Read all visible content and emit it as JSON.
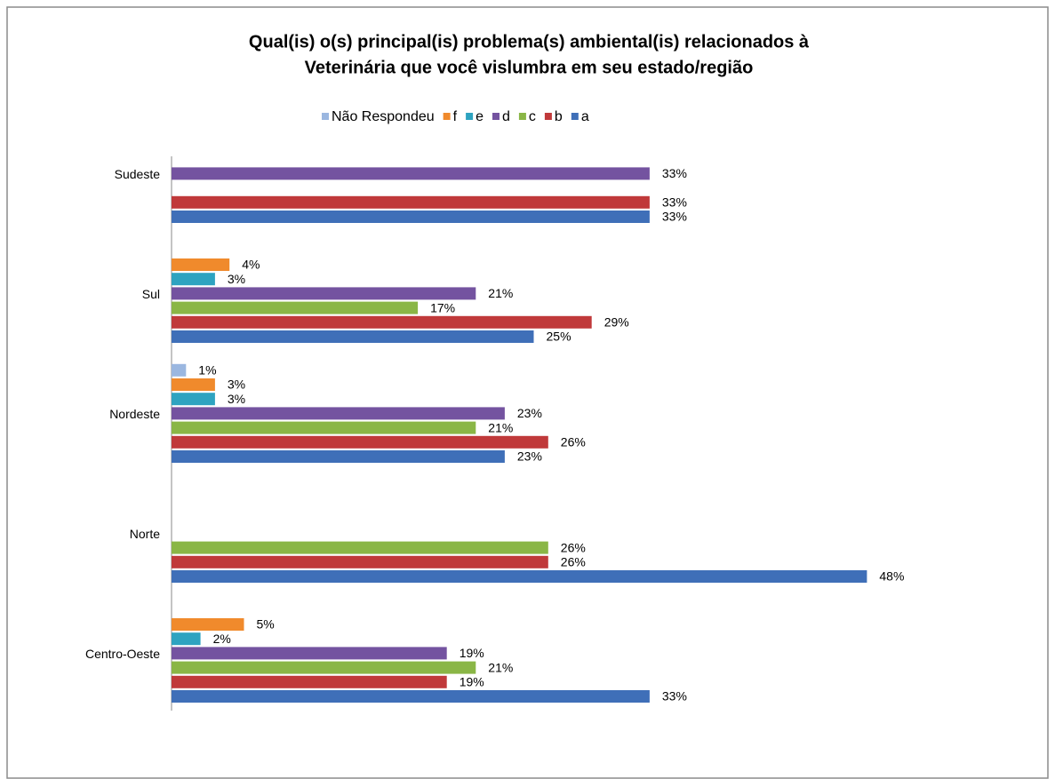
{
  "chart_data": {
    "type": "hbar",
    "title": [
      "Qual(is) o(s) principal(is)  problema(s) ambiental(is) relacionados à",
      "Veterinária que você vislumbra em seu estado/região"
    ],
    "categories": [
      "Sudeste",
      "Sul",
      "Nordeste",
      "Norte",
      "Centro-Oeste"
    ],
    "series": [
      {
        "name": "Não Respondeu",
        "color": "#9bb7e0",
        "values": [
          null,
          null,
          1,
          null,
          null
        ],
        "value_labels": [
          null,
          null,
          "1%",
          null,
          null
        ]
      },
      {
        "name": "f",
        "color": "#f08a2c",
        "values": [
          null,
          4,
          3,
          null,
          5
        ],
        "value_labels": [
          null,
          "4%",
          "3%",
          null,
          "5%"
        ]
      },
      {
        "name": "e",
        "color": "#2ea3c0",
        "values": [
          null,
          3,
          3,
          null,
          2
        ],
        "value_labels": [
          null,
          "3%",
          "3%",
          null,
          "2%"
        ]
      },
      {
        "name": "d",
        "color": "#7453a0",
        "values": [
          33,
          21,
          23,
          null,
          19
        ],
        "value_labels": [
          "33%",
          "21%",
          "23%",
          null,
          "19%"
        ]
      },
      {
        "name": "c",
        "color": "#8ab646",
        "values": [
          null,
          17,
          21,
          26,
          21
        ],
        "value_labels": [
          null,
          "17%",
          "21%",
          "26%",
          "21%"
        ]
      },
      {
        "name": "b",
        "color": "#c0393a",
        "values": [
          33,
          29,
          26,
          26,
          19
        ],
        "value_labels": [
          "33%",
          "29%",
          "26%",
          "26%",
          "19%"
        ]
      },
      {
        "name": "a",
        "color": "#3f6fb8",
        "values": [
          33,
          25,
          23,
          48,
          33
        ],
        "value_labels": [
          "33%",
          "25%",
          "23%",
          "48%",
          "33%"
        ]
      }
    ],
    "legend": "top"
  }
}
